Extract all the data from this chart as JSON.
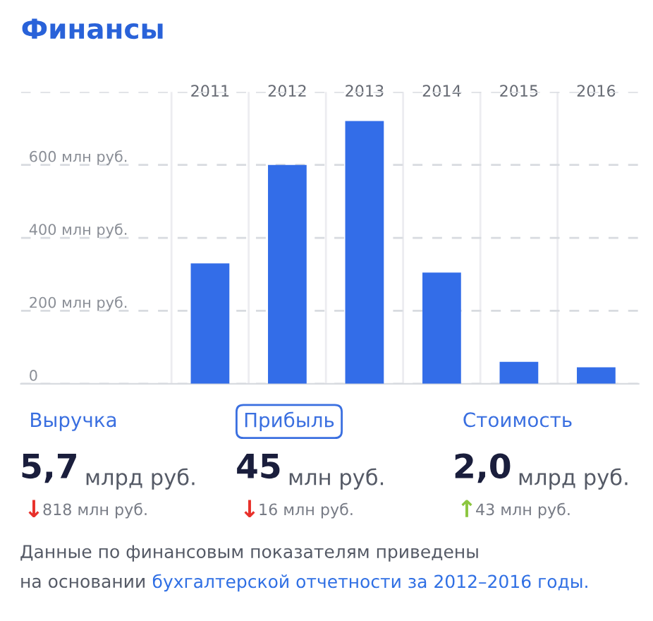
{
  "chart_data": [
    {
      "type": "bar",
      "title": "Финансы",
      "categories": [
        "2011",
        "2012",
        "2013",
        "2014",
        "2015",
        "2016"
      ],
      "values": [
        330,
        600,
        720,
        305,
        60,
        45
      ],
      "color": "#336de8",
      "ylim": [
        0,
        800
      ],
      "yticks": [
        {
          "value": 0,
          "label": "0"
        },
        {
          "value": 200,
          "label": "200 млн руб."
        },
        {
          "value": 400,
          "label": "400 млн руб."
        },
        {
          "value": 600,
          "label": "600 млн руб."
        },
        {
          "value": 800,
          "label": null
        }
      ],
      "grid": "y"
    },
    {
      "type": "other",
      "annotations": [
        "Выручка",
        "5,7",
        "млрд руб.",
        "↓",
        "818 млн руб.",
        "Прибыль",
        "45",
        "млн руб.",
        "↓",
        "16 млн руб.",
        "Стоимость",
        "2,0",
        "млрд руб.",
        "↑",
        "43 млн руб.",
        "Данные по финансовым показателям приведены",
        "на основании",
        "бухгалтерской отчетности за 2012–2016 годы."
      ],
      "colors": [
        "#3a6fe0",
        "#1a1e3c",
        "#555a66",
        "#e8302a",
        "#777b85",
        "#3a6fe0",
        "#1a1e3c",
        "#555a66",
        "#e8302a",
        "#777b85",
        "#3a6fe0",
        "#1a1e3c",
        "#555a66",
        "#8cc63f",
        "#777b85",
        "#555a66",
        "#555a66",
        "#2f6fe4"
      ]
    }
  ]
}
